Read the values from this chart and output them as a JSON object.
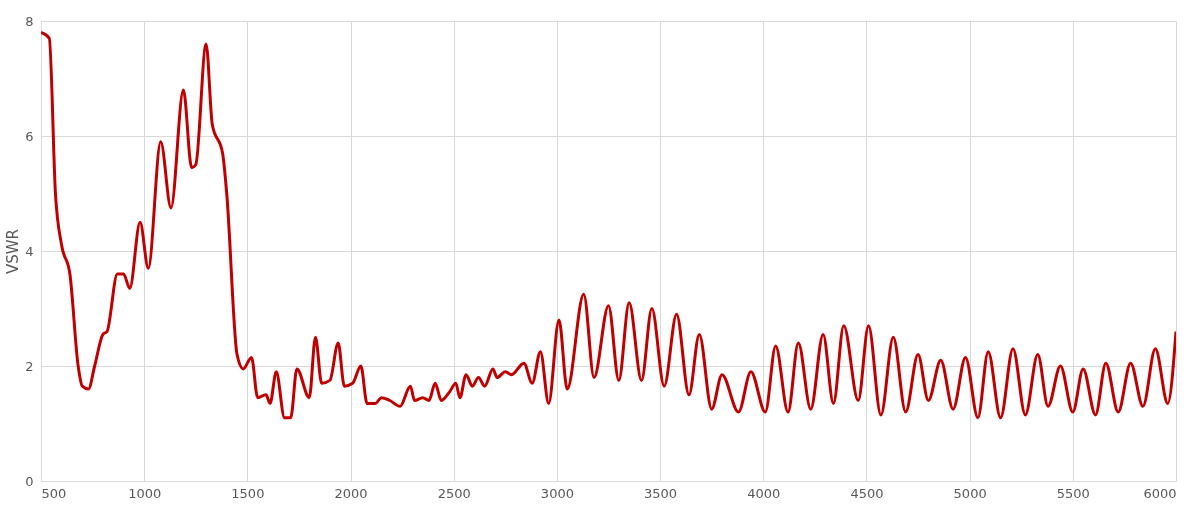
{
  "chart_data": {
    "type": "line",
    "ylabel": "VSWR",
    "xlim": [
      500,
      6000
    ],
    "xticks": [
      500,
      1000,
      1500,
      2000,
      2500,
      3000,
      3500,
      4000,
      4500,
      5000,
      5500,
      6000
    ],
    "ylim": [
      0,
      8
    ],
    "yticks": [
      0,
      2,
      4,
      6,
      8
    ],
    "grid": true,
    "marker": "none",
    "line_style": "solid",
    "series": [
      {
        "color": "#c00000",
        "x": [
          500,
          540,
          570,
          600,
          640,
          680,
          700,
          730,
          760,
          800,
          820,
          870,
          900,
          930,
          980,
          1020,
          1080,
          1130,
          1190,
          1230,
          1250,
          1300,
          1330,
          1380,
          1400,
          1450,
          1480,
          1520,
          1550,
          1590,
          1610,
          1640,
          1680,
          1710,
          1740,
          1800,
          1830,
          1860,
          1900,
          1940,
          1970,
          2010,
          2050,
          2080,
          2120,
          2150,
          2190,
          2240,
          2290,
          2310,
          2350,
          2380,
          2410,
          2440,
          2480,
          2510,
          2530,
          2560,
          2590,
          2620,
          2650,
          2690,
          2710,
          2750,
          2780,
          2840,
          2880,
          2920,
          2960,
          3010,
          3050,
          3130,
          3180,
          3250,
          3300,
          3350,
          3410,
          3460,
          3520,
          3580,
          3640,
          3690,
          3750,
          3800,
          3880,
          3940,
          4010,
          4060,
          4120,
          4170,
          4230,
          4290,
          4340,
          4390,
          4460,
          4510,
          4570,
          4630,
          4690,
          4750,
          4800,
          4860,
          4920,
          4980,
          5040,
          5090,
          5150,
          5210,
          5270,
          5330,
          5380,
          5440,
          5500,
          5550,
          5610,
          5660,
          5720,
          5780,
          5840,
          5900,
          5960,
          6000
        ],
        "values": [
          7.8,
          7.7,
          5.0,
          4.1,
          3.6,
          2.0,
          1.65,
          1.6,
          2.0,
          2.55,
          2.6,
          3.6,
          3.6,
          3.35,
          4.5,
          3.7,
          5.9,
          4.75,
          6.8,
          5.45,
          5.5,
          7.6,
          6.2,
          5.7,
          5.0,
          2.2,
          1.95,
          2.15,
          1.45,
          1.5,
          1.35,
          1.9,
          1.1,
          1.1,
          1.95,
          1.45,
          2.5,
          1.7,
          1.75,
          2.4,
          1.65,
          1.7,
          2.0,
          1.35,
          1.35,
          1.45,
          1.4,
          1.3,
          1.65,
          1.4,
          1.45,
          1.4,
          1.7,
          1.4,
          1.55,
          1.7,
          1.45,
          1.85,
          1.65,
          1.8,
          1.65,
          1.95,
          1.8,
          1.9,
          1.85,
          2.05,
          1.7,
          2.25,
          1.35,
          2.8,
          1.6,
          3.25,
          1.8,
          3.05,
          1.75,
          3.1,
          1.75,
          3.0,
          1.65,
          2.9,
          1.5,
          2.55,
          1.25,
          1.85,
          1.2,
          1.9,
          1.2,
          2.35,
          1.2,
          2.4,
          1.25,
          2.55,
          1.35,
          2.7,
          1.4,
          2.7,
          1.15,
          2.5,
          1.2,
          2.2,
          1.4,
          2.1,
          1.25,
          2.15,
          1.1,
          2.25,
          1.1,
          2.3,
          1.15,
          2.2,
          1.3,
          2.0,
          1.2,
          1.95,
          1.15,
          2.05,
          1.2,
          2.05,
          1.3,
          2.3,
          1.35,
          2.6
        ]
      }
    ]
  }
}
